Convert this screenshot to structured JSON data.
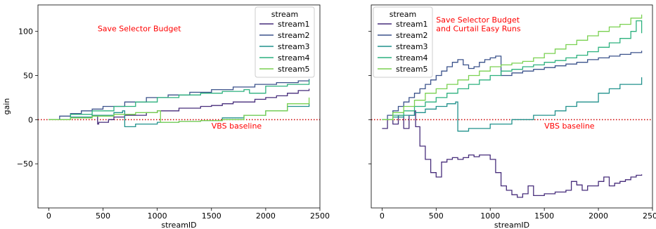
{
  "chart_data": [
    {
      "type": "line",
      "panel": "left",
      "xlabel": "streamID",
      "ylabel": "gain",
      "xlim": [
        -100,
        2500
      ],
      "ylim": [
        -100,
        130
      ],
      "xticks": [
        0,
        500,
        1000,
        1500,
        2000,
        2500
      ],
      "yticks": [
        -50,
        0,
        50,
        100
      ],
      "ytick_labels": [
        "−50",
        "0",
        "50",
        "100"
      ],
      "grid": false,
      "legend": {
        "title": "stream",
        "placement": "top-right"
      },
      "annotations": [
        {
          "text": "Save Selector Budget",
          "x": 450,
          "y": 100,
          "color": "#ff0000"
        },
        {
          "text": "VBS baseline",
          "x": 1500,
          "y": -10,
          "color": "#ff0000"
        }
      ],
      "baseline": {
        "y": 0,
        "color": "#cc0000",
        "style": "dotted"
      },
      "series": [
        {
          "name": "stream1",
          "color": "#472d7b",
          "x": [
            0,
            200,
            400,
            450,
            460,
            550,
            600,
            700,
            900,
            1000,
            1200,
            1400,
            1500,
            1600,
            1700,
            1900,
            2000,
            2100,
            2200,
            2300,
            2400
          ],
          "y": [
            0,
            3,
            5,
            -5,
            -3,
            0,
            3,
            5,
            8,
            10,
            13,
            15,
            16,
            18,
            20,
            23,
            25,
            27,
            30,
            33,
            35
          ]
        },
        {
          "name": "stream2",
          "color": "#3b528b",
          "x": [
            0,
            100,
            200,
            300,
            400,
            500,
            700,
            900,
            1100,
            1300,
            1500,
            1700,
            1900,
            2100,
            2300,
            2400
          ],
          "y": [
            0,
            4,
            7,
            10,
            12,
            15,
            20,
            25,
            28,
            31,
            34,
            37,
            40,
            42,
            44,
            46
          ]
        },
        {
          "name": "stream3",
          "color": "#21918c",
          "x": [
            0,
            200,
            400,
            600,
            680,
            700,
            800,
            1000,
            1200,
            1400,
            1600,
            1800,
            2000,
            2200,
            2400
          ],
          "y": [
            0,
            3,
            5,
            8,
            10,
            -8,
            -5,
            -3,
            -2,
            -1,
            2,
            5,
            10,
            15,
            19
          ]
        },
        {
          "name": "stream4",
          "color": "#2cb17e",
          "x": [
            0,
            200,
            400,
            600,
            800,
            1000,
            1200,
            1400,
            1600,
            1800,
            1850,
            2000,
            2200,
            2400
          ],
          "y": [
            0,
            6,
            10,
            15,
            20,
            25,
            28,
            30,
            32,
            34,
            30,
            38,
            40,
            45
          ]
        },
        {
          "name": "stream5",
          "color": "#7ad151",
          "x": [
            0,
            200,
            400,
            600,
            800,
            1000,
            1030,
            1200,
            1400,
            1600,
            1800,
            2000,
            2200,
            2400
          ],
          "y": [
            0,
            2,
            4,
            6,
            8,
            10,
            -3,
            -2,
            -1,
            0,
            5,
            10,
            18,
            25
          ]
        }
      ]
    },
    {
      "type": "line",
      "panel": "right",
      "xlabel": "streamID",
      "ylabel": "",
      "xlim": [
        -100,
        2500
      ],
      "ylim": [
        -100,
        130
      ],
      "xticks": [
        0,
        500,
        1000,
        1500,
        2000,
        2500
      ],
      "yticks": [
        -50,
        0,
        50,
        100
      ],
      "grid": false,
      "legend": {
        "title": "stream",
        "placement": "top-left"
      },
      "annotations": [
        {
          "text": "Save Selector Budget",
          "x": 500,
          "y": 110,
          "color": "#ff0000"
        },
        {
          "text": "and Curtail Easy Runs",
          "x": 500,
          "y": 100,
          "color": "#ff0000"
        },
        {
          "text": "VBS baseline",
          "x": 1500,
          "y": -10,
          "color": "#ff0000"
        }
      ],
      "baseline": {
        "y": 0,
        "color": "#cc0000",
        "style": "dotted"
      },
      "series": [
        {
          "name": "stream1",
          "color": "#472d7b",
          "x": [
            0,
            50,
            100,
            150,
            200,
            250,
            300,
            310,
            350,
            400,
            450,
            500,
            550,
            600,
            650,
            700,
            750,
            800,
            850,
            900,
            1000,
            1050,
            1100,
            1150,
            1200,
            1250,
            1300,
            1350,
            1400,
            1500,
            1600,
            1700,
            1750,
            1800,
            1850,
            1900,
            2000,
            2050,
            2100,
            2150,
            2200,
            2250,
            2300,
            2350,
            2400
          ],
          "y": [
            -10,
            0,
            -5,
            5,
            -10,
            5,
            10,
            -8,
            -30,
            -45,
            -60,
            -65,
            -48,
            -45,
            -43,
            -45,
            -43,
            -40,
            -42,
            -40,
            -45,
            -60,
            -75,
            -80,
            -85,
            -88,
            -84,
            -75,
            -86,
            -84,
            -82,
            -80,
            -70,
            -74,
            -80,
            -75,
            -70,
            -65,
            -75,
            -72,
            -70,
            -68,
            -65,
            -63,
            -62
          ]
        },
        {
          "name": "stream2",
          "color": "#3b528b",
          "x": [
            0,
            50,
            100,
            150,
            200,
            250,
            300,
            350,
            400,
            450,
            500,
            550,
            600,
            650,
            700,
            750,
            800,
            850,
            900,
            950,
            1000,
            1050,
            1100,
            1200,
            1300,
            1400,
            1500,
            1600,
            1700,
            1800,
            1900,
            2000,
            2100,
            2200,
            2300,
            2400
          ],
          "y": [
            0,
            5,
            10,
            15,
            20,
            25,
            30,
            35,
            40,
            45,
            50,
            55,
            60,
            65,
            68,
            62,
            58,
            60,
            65,
            68,
            70,
            72,
            50,
            53,
            55,
            57,
            59,
            61,
            63,
            65,
            68,
            70,
            72,
            74,
            76,
            78
          ]
        },
        {
          "name": "stream3",
          "color": "#21918c",
          "x": [
            0,
            100,
            200,
            300,
            400,
            500,
            600,
            680,
            700,
            800,
            1000,
            1200,
            1400,
            1600,
            1700,
            1800,
            2000,
            2100,
            2200,
            2400
          ],
          "y": [
            0,
            3,
            5,
            8,
            12,
            15,
            18,
            20,
            -13,
            -10,
            -5,
            0,
            5,
            10,
            15,
            20,
            30,
            35,
            40,
            48
          ]
        },
        {
          "name": "stream4",
          "color": "#2cb17e",
          "x": [
            0,
            100,
            200,
            300,
            400,
            500,
            600,
            700,
            800,
            900,
            1000,
            1100,
            1200,
            1300,
            1400,
            1500,
            1600,
            1700,
            1800,
            1900,
            2000,
            2100,
            2200,
            2300,
            2350,
            2400
          ],
          "y": [
            0,
            5,
            10,
            15,
            20,
            25,
            30,
            35,
            40,
            45,
            50,
            55,
            57,
            60,
            62,
            65,
            67,
            70,
            73,
            77,
            82,
            87,
            92,
            100,
            112,
            98
          ]
        },
        {
          "name": "stream5",
          "color": "#7ad151",
          "x": [
            0,
            100,
            200,
            300,
            400,
            500,
            600,
            700,
            800,
            900,
            1000,
            1100,
            1200,
            1300,
            1400,
            1500,
            1600,
            1700,
            1800,
            1900,
            2000,
            2100,
            2200,
            2300,
            2400
          ],
          "y": [
            0,
            8,
            15,
            22,
            30,
            35,
            40,
            45,
            50,
            55,
            60,
            62,
            64,
            66,
            70,
            75,
            80,
            85,
            90,
            95,
            100,
            105,
            108,
            115,
            119
          ]
        }
      ]
    }
  ]
}
